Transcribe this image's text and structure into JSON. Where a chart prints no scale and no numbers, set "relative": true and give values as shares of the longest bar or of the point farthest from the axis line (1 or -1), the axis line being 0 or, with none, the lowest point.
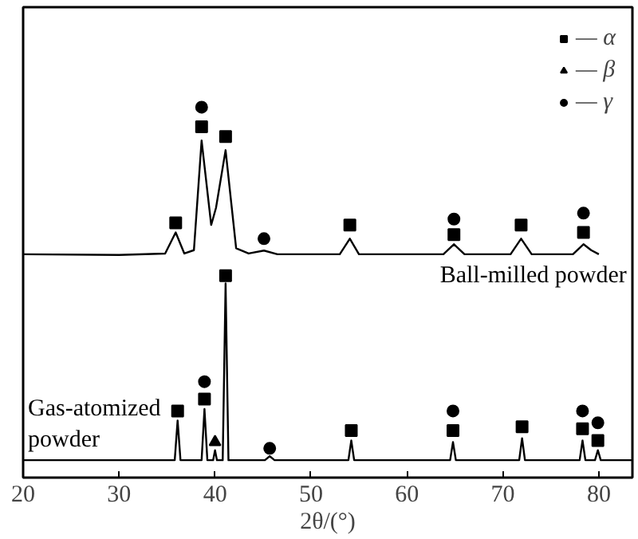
{
  "chart_data": {
    "type": "line",
    "relative": true,
    "xlabel": "2θ/(°)",
    "xlim": [
      20,
      83.5
    ],
    "xticks": [
      20,
      30,
      40,
      50,
      60,
      70,
      80
    ],
    "legend": "top right",
    "grid": false,
    "marker": "none",
    "line_style": "solid",
    "series": [
      {
        "name": "Ball-milled powder",
        "color": "#000000",
        "x": [
          20,
          30,
          34.8,
          35.9,
          36.8,
          37.8,
          38.6,
          39.6,
          40.1,
          41.1,
          42.2,
          43.5,
          45.1,
          46.5,
          53.0,
          54.05,
          55.0,
          63.8,
          64.9,
          66.0,
          70.8,
          71.9,
          73.0,
          77.3,
          78.4,
          79.2,
          80.0
        ],
        "values": [
          0.603,
          0.601,
          0.605,
          0.662,
          0.605,
          0.614,
          0.91,
          0.682,
          0.728,
          0.884,
          0.619,
          0.605,
          0.613,
          0.603,
          0.603,
          0.645,
          0.603,
          0.603,
          0.63,
          0.603,
          0.603,
          0.645,
          0.603,
          0.603,
          0.63,
          0.614,
          0.603
        ]
      },
      {
        "name": "Gas-atomized powder",
        "color": "#000000",
        "x": [
          20,
          35.8,
          36.1,
          36.4,
          38.6,
          38.9,
          39.2,
          39.8,
          40.0,
          40.2,
          40.8,
          41.1,
          41.4,
          45.2,
          45.7,
          46.2,
          53.9,
          54.2,
          54.5,
          64.5,
          64.8,
          65.1,
          71.7,
          72.0,
          72.3,
          78.0,
          78.3,
          78.6,
          79.6,
          79.9,
          80.2,
          83.5
        ],
        "values": [
          0.047,
          0.047,
          0.154,
          0.047,
          0.047,
          0.185,
          0.047,
          0.047,
          0.074,
          0.047,
          0.047,
          0.524,
          0.047,
          0.047,
          0.058,
          0.047,
          0.047,
          0.1,
          0.047,
          0.047,
          0.096,
          0.047,
          0.047,
          0.106,
          0.047,
          0.047,
          0.1,
          0.047,
          0.047,
          0.074,
          0.047,
          0.047
        ]
      },
      {
        "name": "— α",
        "type": "scatter",
        "marker": "square",
        "color": "#000000",
        "x": [
          35.9,
          38.6,
          41.1,
          54.05,
          64.9,
          71.9,
          78.4,
          36.1,
          38.9,
          41.1,
          54.2,
          64.8,
          72.0,
          78.3,
          79.9
        ],
        "values": [
          0.688,
          0.947,
          0.921,
          0.682,
          0.656,
          0.682,
          0.662,
          0.18,
          0.212,
          0.545,
          0.127,
          0.127,
          0.137,
          0.132,
          0.1
        ]
      },
      {
        "name": "— β",
        "type": "scatter",
        "marker": "triangle",
        "color": "#000000",
        "x": [
          40.0
        ],
        "values": [
          0.096
        ]
      },
      {
        "name": "— γ",
        "type": "scatter",
        "marker": "circle",
        "color": "#000000",
        "x": [
          38.6,
          45.1,
          64.9,
          78.4,
          38.9,
          45.7,
          64.8,
          78.3,
          79.9
        ],
        "values": [
          1.0,
          0.645,
          0.698,
          0.714,
          0.259,
          0.079,
          0.18,
          0.18,
          0.148
        ]
      }
    ]
  }
}
